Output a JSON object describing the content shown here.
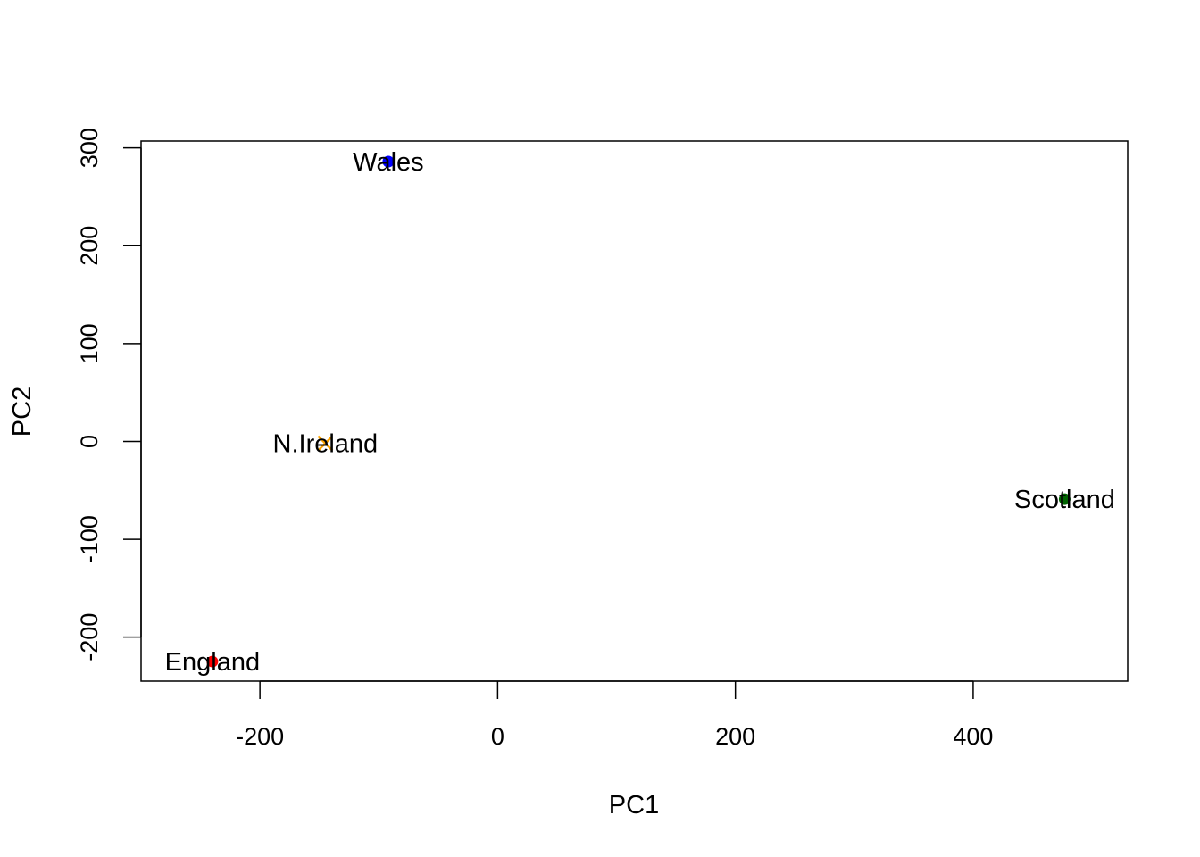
{
  "chart_data": {
    "type": "scatter",
    "title": "",
    "xlabel": "PC1",
    "ylabel": "PC2",
    "xlim": [
      -300,
      530
    ],
    "ylim": [
      -245,
      307
    ],
    "xticks": [
      -200,
      0,
      200,
      400
    ],
    "xtick_labels": [
      "-200",
      "0",
      "200",
      "400"
    ],
    "yticks": [
      -200,
      -100,
      0,
      100,
      200,
      300
    ],
    "ytick_labels": [
      "-200",
      "-100",
      "0",
      "100",
      "200",
      "300"
    ],
    "grid": false,
    "points": [
      {
        "label": "England",
        "x": -240,
        "y": -225,
        "color": "#ff0000",
        "marker": "circle"
      },
      {
        "label": "Wales",
        "x": -92,
        "y": 286,
        "color": "#0000ff",
        "marker": "circle"
      },
      {
        "label": "Scotland",
        "x": 477,
        "y": -59,
        "color": "#006400",
        "marker": "circle"
      },
      {
        "label": "N.Ireland",
        "x": -145,
        "y": -2,
        "color": "#ffa500",
        "marker": "cross"
      }
    ]
  }
}
